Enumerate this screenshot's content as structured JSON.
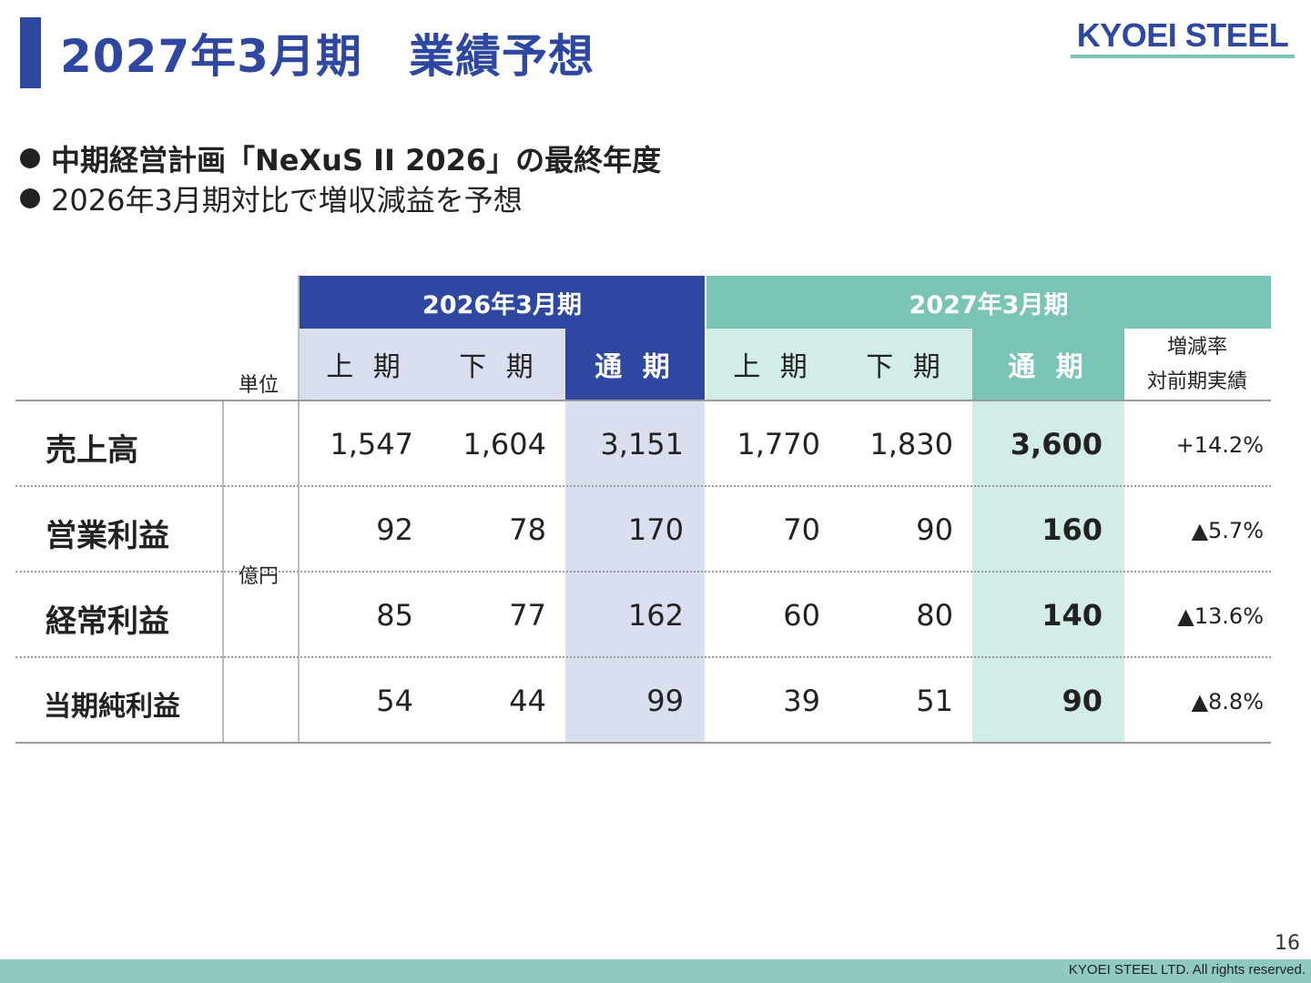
{
  "title": "2027年3月期　業績予想",
  "logo": "KYOEI STEEL",
  "bullets": [
    "中期経営計画「NeXuS II 2026」の最終年度",
    "2026年3月期対比で増収減益を予想"
  ],
  "colors": {
    "primary": "#2e47a0",
    "accent": "#7ac4b6",
    "light_blue": "#dadff0",
    "light_green": "#d2ece7"
  },
  "table": {
    "group_headers": [
      "2026年3月期",
      "2027年3月期"
    ],
    "sub_headers": [
      "上 期",
      "下 期",
      "通 期",
      "上 期",
      "下 期",
      "通 期"
    ],
    "rate_header": [
      "増減率",
      "対前期実績"
    ],
    "unit_header": "単位",
    "unit": "億円",
    "rows": [
      {
        "label": "売上高",
        "values": [
          "1,547",
          "1,604",
          "3,151",
          "1,770",
          "1,830",
          "3,600"
        ],
        "rate": "+14.2%"
      },
      {
        "label": "営業利益",
        "values": [
          "92",
          "78",
          "170",
          "70",
          "90",
          "160"
        ],
        "rate": "▲5.7%"
      },
      {
        "label": "経常利益",
        "values": [
          "85",
          "77",
          "162",
          "60",
          "80",
          "140"
        ],
        "rate": "▲13.6%"
      },
      {
        "label": "当期純利益",
        "values": [
          "54",
          "44",
          "99",
          "39",
          "51",
          "90"
        ],
        "rate": "▲8.8%"
      }
    ]
  },
  "page_number": "16",
  "footer": "KYOEI STEEL LTD.  All rights reserved."
}
